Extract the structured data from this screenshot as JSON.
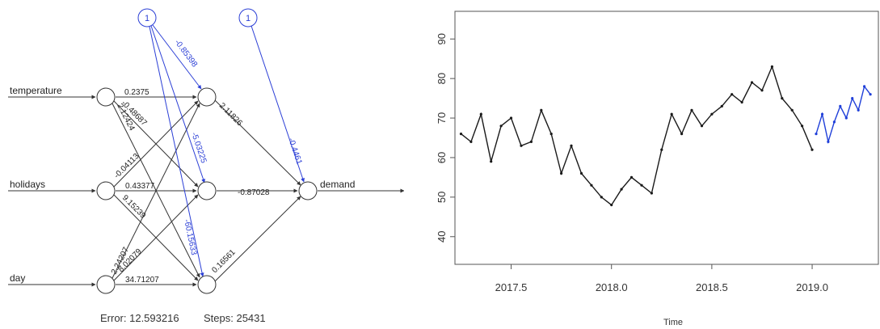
{
  "neural_net": {
    "inputs": [
      "temperature",
      "holidays",
      "day"
    ],
    "output": "demand",
    "bias_label": "1",
    "input_to_hidden_weights": {
      "temperature": [
        "0.2375",
        "-0.48687",
        "2.12424"
      ],
      "holidays": [
        "-0.04113",
        "0.43377",
        "9.15239"
      ],
      "day": [
        "2.24207",
        "8.02079",
        "34.71207"
      ]
    },
    "bias_to_hidden_weights": [
      "-0.85398",
      "-5.03225",
      "-60.15633"
    ],
    "hidden_to_output_weights": [
      "2.11826",
      "-0.87028",
      "0.16561"
    ],
    "bias_to_output_weight": "-0.4461",
    "error_label": "Error: 12.593216",
    "steps_label": "Steps: 25431"
  },
  "chart_data": {
    "type": "line",
    "xlabel": "Time",
    "ylabel": "",
    "xlim": [
      2017.22,
      2019.33
    ],
    "ylim": [
      33,
      97
    ],
    "x_ticks": [
      "2017.5",
      "2018.0",
      "2018.5",
      "2019.0"
    ],
    "y_ticks": [
      "40",
      "50",
      "60",
      "70",
      "80",
      "90"
    ],
    "series": [
      {
        "color": "#1a1a1a",
        "x": [
          2017.25,
          2017.3,
          2017.35,
          2017.4,
          2017.45,
          2017.5,
          2017.55,
          2017.6,
          2017.65,
          2017.7,
          2017.75,
          2017.8,
          2017.85,
          2017.9,
          2017.95,
          2018.0,
          2018.05,
          2018.1,
          2018.15,
          2018.2,
          2018.25,
          2018.3,
          2018.35,
          2018.4,
          2018.45,
          2018.5,
          2018.55,
          2018.6,
          2018.65,
          2018.7,
          2018.75,
          2018.8,
          2018.85,
          2018.9,
          2018.95,
          2019.0
        ],
        "values": [
          66,
          64,
          71,
          59,
          68,
          70,
          63,
          64,
          72,
          66,
          56,
          63,
          56,
          53,
          50,
          48,
          52,
          55,
          53,
          51,
          62,
          71,
          66,
          72,
          68,
          71,
          73,
          76,
          74,
          79,
          77,
          83,
          75,
          72,
          68,
          62
        ]
      },
      {
        "color": "#1f3fd9",
        "x": [
          2019.02,
          2019.05,
          2019.08,
          2019.11,
          2019.14,
          2019.17,
          2019.2,
          2019.23,
          2019.26,
          2019.29
        ],
        "values": [
          66,
          71,
          64,
          69,
          73,
          70,
          75,
          72,
          78,
          76
        ]
      }
    ]
  }
}
